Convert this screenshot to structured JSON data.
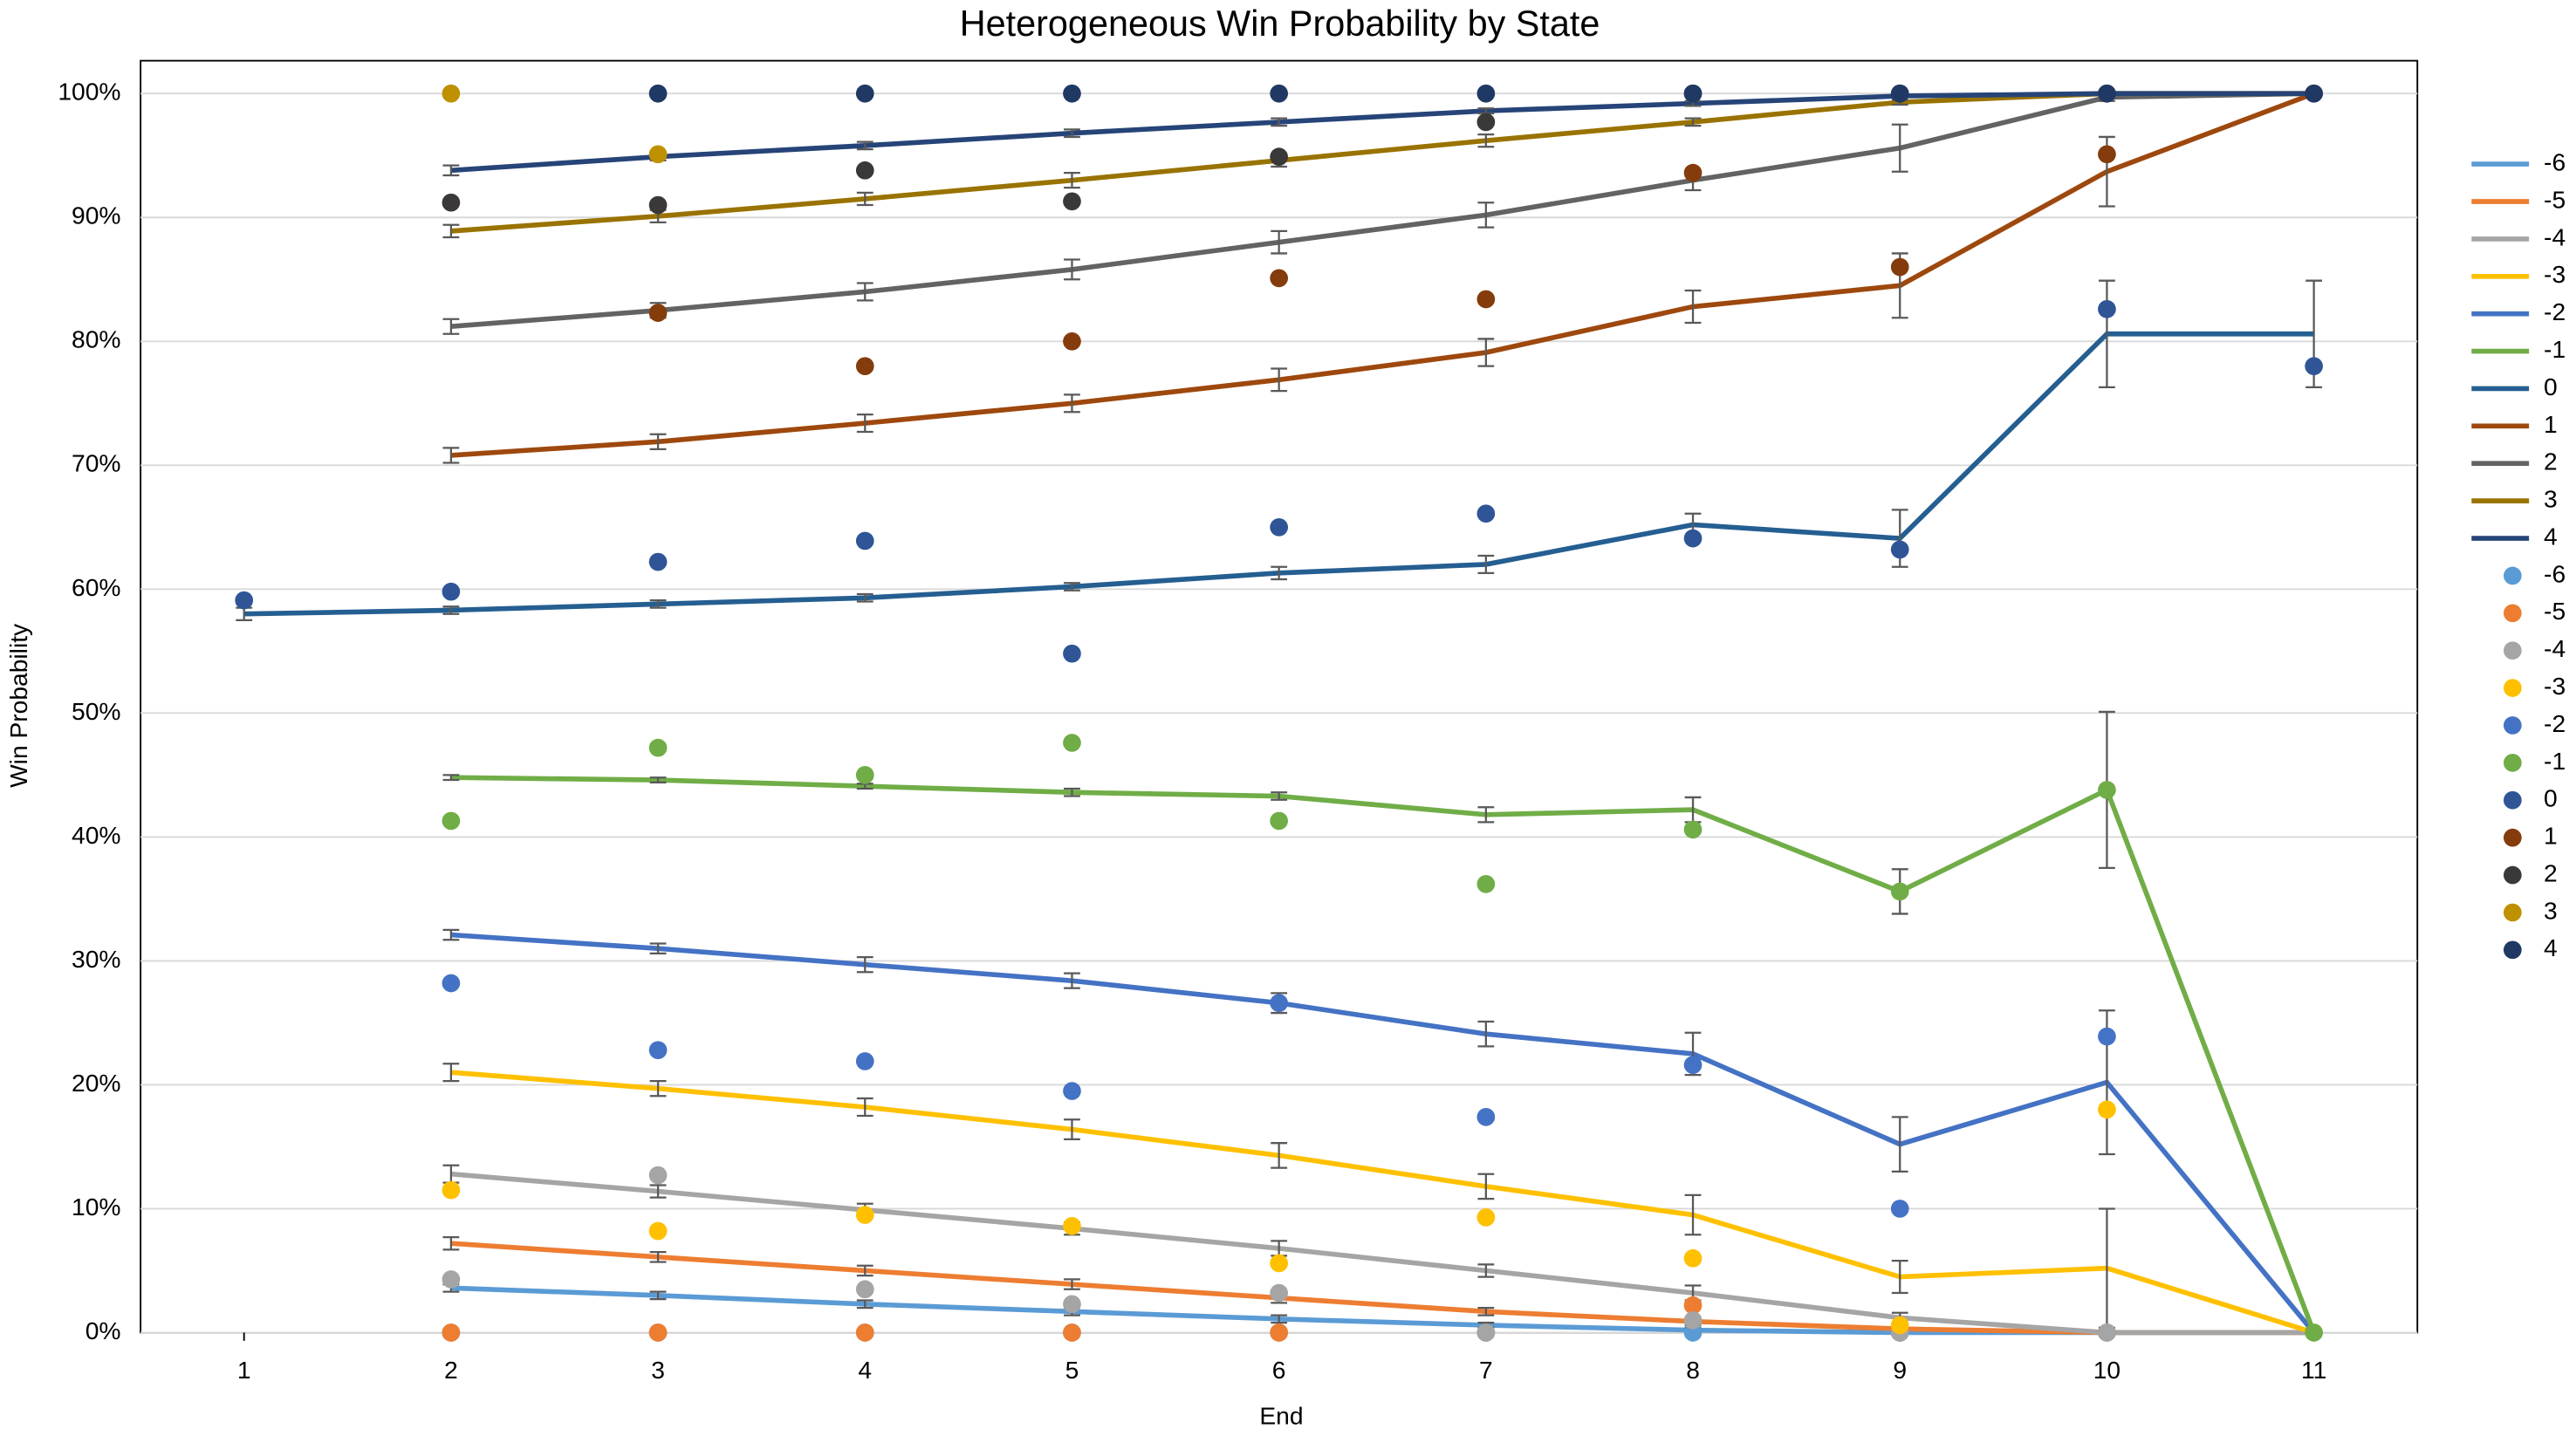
{
  "chart_data": {
    "type": "combo",
    "title": "Heterogeneous Win Probability by State",
    "x_label": "End",
    "y_label": "Win Probability",
    "x": [
      1,
      2,
      3,
      4,
      5,
      6,
      7,
      8,
      9,
      10,
      11
    ],
    "xlim": [
      0.5,
      11.5
    ],
    "xticks": [
      1,
      2,
      3,
      4,
      5,
      6,
      7,
      8,
      9,
      10,
      11
    ],
    "ylim": [
      0,
      100
    ],
    "yticks": [
      {
        "value": 0,
        "label": "0%"
      },
      {
        "value": 10,
        "label": "10%"
      },
      {
        "value": 20,
        "label": "20%"
      },
      {
        "value": 30,
        "label": "30%"
      },
      {
        "value": 40,
        "label": "40%"
      },
      {
        "value": 50,
        "label": "50%"
      },
      {
        "value": 60,
        "label": "60%"
      },
      {
        "value": 70,
        "label": "70%"
      },
      {
        "value": 80,
        "label": "80%"
      },
      {
        "value": 90,
        "label": "90%"
      },
      {
        "value": 100,
        "label": "100%"
      }
    ],
    "grid": true,
    "legend": "right",
    "series": [
      {
        "name": "-6",
        "type": "line",
        "color": "#5b9bd5",
        "values": [
          null,
          3.6,
          3.0,
          2.3,
          1.7,
          1.1,
          0.6,
          0.2,
          0,
          0,
          0
        ],
        "errors": [
          null,
          0.3,
          0.3,
          0.3,
          0.3,
          0.3,
          0.2,
          0.2,
          0.1,
          0.1,
          0.1
        ]
      },
      {
        "name": "-5",
        "type": "line",
        "color": "#ed7d31",
        "values": [
          null,
          7.2,
          6.1,
          5.0,
          3.9,
          2.8,
          1.7,
          0.9,
          0.3,
          0,
          0
        ],
        "errors": [
          null,
          0.5,
          0.4,
          0.4,
          0.4,
          0.4,
          0.3,
          0.3,
          0.2,
          0.1,
          0.1
        ]
      },
      {
        "name": "-4",
        "type": "line",
        "color": "#a5a5a5",
        "values": [
          null,
          12.8,
          11.4,
          9.9,
          8.4,
          6.8,
          5.0,
          3.2,
          1.2,
          0,
          0
        ],
        "errors": [
          null,
          0.7,
          0.5,
          0.5,
          0.5,
          0.6,
          0.5,
          0.6,
          0.4,
          0.1,
          0.1
        ]
      },
      {
        "name": "-3",
        "type": "line",
        "color": "#ffc000",
        "values": [
          null,
          21.0,
          19.7,
          18.2,
          16.4,
          14.3,
          11.8,
          9.5,
          4.5,
          5.2,
          0
        ],
        "errors": [
          null,
          0.7,
          0.6,
          0.7,
          0.8,
          1.0,
          1.0,
          1.6,
          1.3,
          4.8,
          0.1
        ]
      },
      {
        "name": "-2",
        "type": "line",
        "color": "#4472c4",
        "values": [
          null,
          32.1,
          31.0,
          29.7,
          28.4,
          26.6,
          24.1,
          22.5,
          15.2,
          20.2,
          0
        ],
        "errors": [
          null,
          0.4,
          0.4,
          0.6,
          0.6,
          0.8,
          1.0,
          1.7,
          2.2,
          5.8,
          0.1
        ]
      },
      {
        "name": "-1",
        "type": "line",
        "color": "#70ad47",
        "values": [
          null,
          44.8,
          44.6,
          44.1,
          43.6,
          43.3,
          41.8,
          42.2,
          35.6,
          43.8,
          0
        ],
        "errors": [
          null,
          0.2,
          0.2,
          0.2,
          0.3,
          0.3,
          0.6,
          1.0,
          1.8,
          6.3,
          0.1
        ]
      },
      {
        "name": "0",
        "type": "line",
        "color": "#255e91",
        "values": [
          58.0,
          58.3,
          58.8,
          59.3,
          60.2,
          61.3,
          62.0,
          65.2,
          64.1,
          80.6,
          80.6
        ],
        "errors": [
          0.5,
          0.3,
          0.3,
          0.3,
          0.3,
          0.5,
          0.7,
          0.9,
          2.3,
          4.3,
          4.3
        ]
      },
      {
        "name": "1",
        "type": "line",
        "color": "#9e480e",
        "values": [
          null,
          70.8,
          71.9,
          73.4,
          75.0,
          76.9,
          79.1,
          82.8,
          84.5,
          93.7,
          100
        ],
        "errors": [
          null,
          0.6,
          0.6,
          0.7,
          0.7,
          0.9,
          1.1,
          1.3,
          2.6,
          2.8,
          0.1
        ]
      },
      {
        "name": "2",
        "type": "line",
        "color": "#636363",
        "values": [
          null,
          81.2,
          82.5,
          84.0,
          85.8,
          88.0,
          90.2,
          93.0,
          95.6,
          99.7,
          100
        ],
        "errors": [
          null,
          0.6,
          0.6,
          0.7,
          0.8,
          0.9,
          1.0,
          0.8,
          1.9,
          0.3,
          0.1
        ]
      },
      {
        "name": "3",
        "type": "line",
        "color": "#997300",
        "values": [
          null,
          88.9,
          90.1,
          91.5,
          93.0,
          94.6,
          96.2,
          97.7,
          99.3,
          100,
          100
        ],
        "errors": [
          null,
          0.5,
          0.5,
          0.5,
          0.6,
          0.5,
          0.5,
          0.3,
          0.2,
          0.1,
          0.1
        ]
      },
      {
        "name": "4",
        "type": "line",
        "color": "#264478",
        "values": [
          null,
          93.8,
          94.9,
          95.8,
          96.8,
          97.7,
          98.6,
          99.2,
          99.8,
          100,
          100
        ],
        "errors": [
          null,
          0.4,
          0.3,
          0.3,
          0.3,
          0.3,
          0.2,
          0.2,
          0.1,
          0.1,
          0.1
        ]
      },
      {
        "name": "-6",
        "type": "scatter",
        "color": "#5b9bd5",
        "values": [
          null,
          0,
          0,
          0,
          0,
          0,
          0,
          0,
          0,
          0,
          null
        ]
      },
      {
        "name": "-5",
        "type": "scatter",
        "color": "#ed7d31",
        "values": [
          null,
          0,
          0,
          0,
          0,
          0,
          0,
          2.2,
          0,
          0,
          null
        ]
      },
      {
        "name": "-4",
        "type": "scatter",
        "color": "#a5a5a5",
        "values": [
          null,
          4.3,
          12.7,
          3.5,
          2.3,
          3.2,
          0,
          1.0,
          0,
          0,
          null
        ]
      },
      {
        "name": "-3",
        "type": "scatter",
        "color": "#ffc000",
        "values": [
          null,
          11.5,
          8.2,
          9.5,
          8.6,
          5.6,
          9.3,
          6.0,
          0.6,
          18.0,
          null
        ]
      },
      {
        "name": "-2",
        "type": "scatter",
        "color": "#4472c4",
        "values": [
          null,
          28.2,
          22.8,
          21.9,
          19.5,
          26.6,
          17.4,
          21.6,
          10.0,
          23.9,
          null
        ]
      },
      {
        "name": "-1",
        "type": "scatter",
        "color": "#70ad47",
        "values": [
          null,
          41.3,
          47.2,
          45.0,
          47.6,
          41.3,
          36.2,
          40.6,
          35.6,
          43.8,
          0
        ]
      },
      {
        "name": "0",
        "type": "scatter",
        "color": "#2f5597",
        "values": [
          59.1,
          59.8,
          62.2,
          63.9,
          54.8,
          65.0,
          66.1,
          64.1,
          63.2,
          82.6,
          78.0
        ]
      },
      {
        "name": "1",
        "type": "scatter",
        "color": "#843c0c",
        "values": [
          null,
          null,
          82.3,
          78.0,
          80.0,
          85.1,
          83.4,
          93.6,
          86.0,
          95.1,
          100
        ]
      },
      {
        "name": "2",
        "type": "scatter",
        "color": "#3b3838",
        "values": [
          null,
          91.2,
          91.0,
          93.8,
          91.3,
          94.9,
          97.7,
          100,
          100,
          100,
          null
        ]
      },
      {
        "name": "3",
        "type": "scatter",
        "color": "#bf9000",
        "values": [
          null,
          100,
          95.1,
          null,
          null,
          null,
          null,
          null,
          null,
          null,
          null
        ]
      },
      {
        "name": "4",
        "type": "scatter",
        "color": "#203864",
        "values": [
          null,
          null,
          100,
          100,
          100,
          100,
          100,
          100,
          100,
          100,
          100
        ]
      }
    ]
  }
}
